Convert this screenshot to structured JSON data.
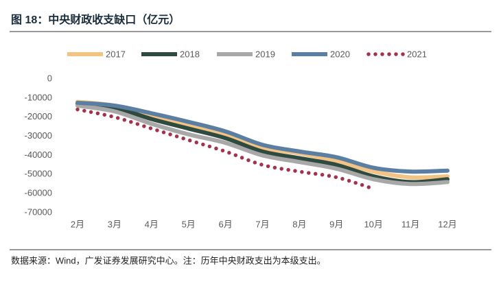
{
  "chart_data": {
    "type": "line",
    "title": "图 18：中央财政收支缺口（亿元）",
    "source": "数据来源：Wind，广发证券发展研究中心。注：历年中央财政支出为本级支出。",
    "categories": [
      "2月",
      "3月",
      "4月",
      "5月",
      "6月",
      "7月",
      "8月",
      "9月",
      "10月",
      "11月",
      "12月"
    ],
    "series": [
      {
        "name": "2017",
        "color": "#f2c384",
        "style": "solid",
        "values": [
          -12000,
          -14000,
          -19000,
          -24000,
          -29000,
          -36000,
          -39000,
          -43000,
          -48500,
          -51500,
          -51000
        ]
      },
      {
        "name": "2018",
        "color": "#2f4b3f",
        "style": "solid",
        "values": [
          -13000,
          -15000,
          -21000,
          -26000,
          -31000,
          -38000,
          -41500,
          -45000,
          -51000,
          -54000,
          -52500
        ]
      },
      {
        "name": "2019",
        "color": "#a8a8a8",
        "style": "solid",
        "values": [
          -14000,
          -17000,
          -23500,
          -29000,
          -33500,
          -40000,
          -43500,
          -47000,
          -52500,
          -55000,
          -54000
        ]
      },
      {
        "name": "2020",
        "color": "#5b7fa2",
        "style": "solid",
        "values": [
          -12500,
          -14000,
          -18000,
          -22500,
          -27500,
          -34500,
          -38000,
          -41000,
          -46500,
          -48500,
          -48000
        ]
      },
      {
        "name": "2021",
        "color": "#a3324c",
        "style": "dotted",
        "values": [
          -16000,
          -20000,
          -26000,
          -32000,
          -38000,
          -45000,
          -48500,
          -51500,
          -57500,
          null,
          null
        ]
      }
    ],
    "ylim": [
      -70000,
      0
    ],
    "yticks": [
      0,
      -10000,
      -20000,
      -30000,
      -40000,
      -50000,
      -60000,
      -70000
    ],
    "grid": false,
    "legend": "top"
  }
}
